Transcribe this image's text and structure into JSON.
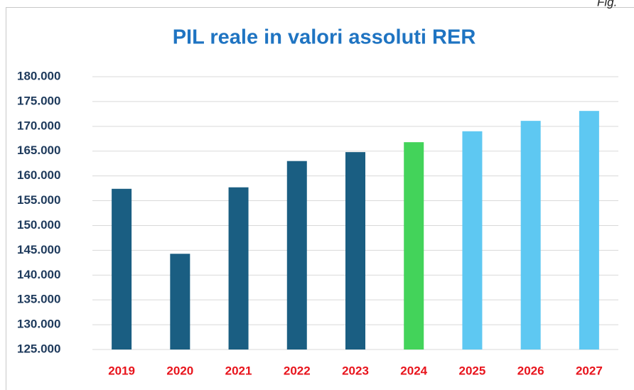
{
  "chart_data": {
    "type": "bar",
    "title": "PIL reale in valori assoluti RER",
    "annotation": "Fig.",
    "categories": [
      "2019",
      "2020",
      "2021",
      "2022",
      "2023",
      "2024",
      "2025",
      "2026",
      "2027"
    ],
    "values": [
      157400,
      144300,
      157700,
      163000,
      164800,
      166800,
      169000,
      171100,
      173100
    ],
    "colors": [
      "#1a5e82",
      "#1a5e82",
      "#1a5e82",
      "#1a5e82",
      "#1a5e82",
      "#43d35a",
      "#5ec8f2",
      "#5ec8f2",
      "#5ec8f2"
    ],
    "ylim": [
      125000,
      180000
    ],
    "yticks": [
      {
        "value": 125000,
        "label": "125.000"
      },
      {
        "value": 130000,
        "label": "130.000"
      },
      {
        "value": 135000,
        "label": "135.000"
      },
      {
        "value": 140000,
        "label": "140.000"
      },
      {
        "value": 145000,
        "label": "145.000"
      },
      {
        "value": 150000,
        "label": "150.000"
      },
      {
        "value": 155000,
        "label": "155.000"
      },
      {
        "value": 160000,
        "label": "160.000"
      },
      {
        "value": 165000,
        "label": "165.000"
      },
      {
        "value": 170000,
        "label": "170.000"
      },
      {
        "value": 175000,
        "label": "175.000"
      },
      {
        "value": 180000,
        "label": "180.000"
      }
    ],
    "grid": true
  }
}
